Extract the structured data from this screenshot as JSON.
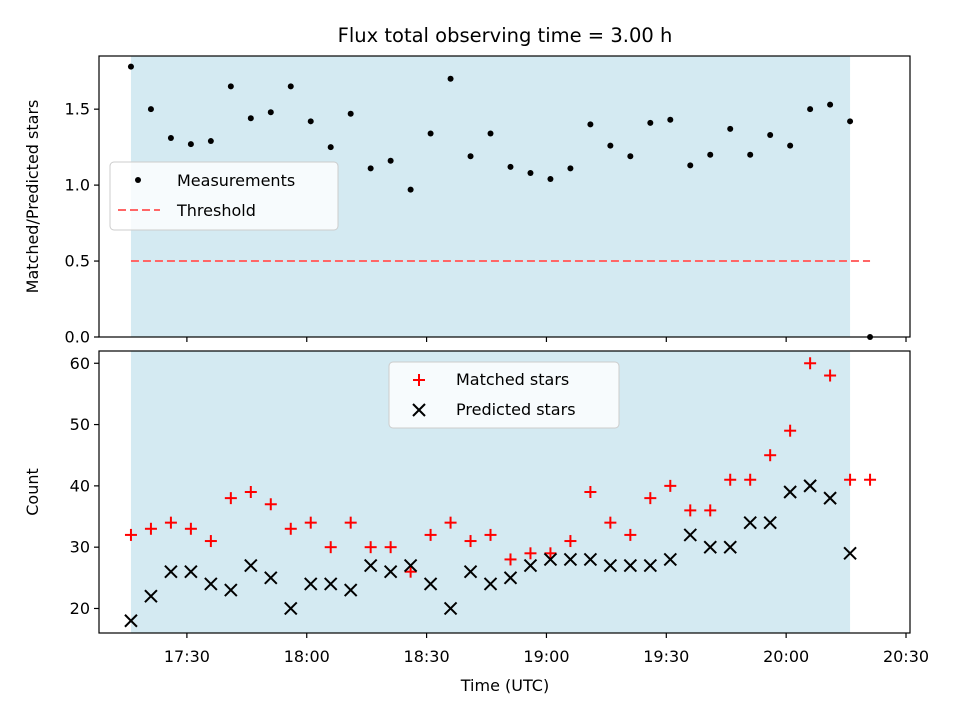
{
  "chart_data": [
    {
      "type": "scatter",
      "title": "Flux total observing time = 3.00 h",
      "ylabel": "Matched/Predicted stars",
      "ylim": [
        0,
        1.85
      ],
      "yticks": [
        0.0,
        0.5,
        1.0,
        1.5
      ],
      "ytick_labels": [
        "0.0",
        "0.5",
        "1.0",
        "1.5"
      ],
      "shaded_region": {
        "from": "17:16",
        "to": "20:16",
        "color": "#add8e6"
      },
      "legend_placement": "center-left",
      "series": [
        {
          "name": "Measurements",
          "marker": "dot",
          "color": "#000000",
          "x": [
            "17:16",
            "17:21",
            "17:26",
            "17:31",
            "17:36",
            "17:41",
            "17:46",
            "17:51",
            "17:56",
            "18:01",
            "18:06",
            "18:11",
            "18:16",
            "18:21",
            "18:26",
            "18:31",
            "18:36",
            "18:41",
            "18:46",
            "18:51",
            "18:56",
            "19:01",
            "19:06",
            "19:11",
            "19:16",
            "19:21",
            "19:26",
            "19:31",
            "19:36",
            "19:41",
            "19:46",
            "19:51",
            "19:56",
            "20:01",
            "20:06",
            "20:11",
            "20:16",
            "20:21"
          ],
          "y": [
            1.78,
            1.5,
            1.31,
            1.27,
            1.29,
            1.65,
            1.44,
            1.48,
            1.65,
            1.42,
            1.25,
            1.47,
            1.11,
            1.16,
            0.97,
            1.34,
            1.7,
            1.19,
            1.34,
            1.12,
            1.08,
            1.04,
            1.11,
            1.4,
            1.26,
            1.19,
            1.41,
            1.43,
            1.13,
            1.2,
            1.37,
            1.2,
            1.33,
            1.26,
            1.5,
            1.53,
            1.42,
            0.0
          ]
        },
        {
          "name": "Threshold",
          "style": "dashed",
          "color": "#ff6666",
          "x": [
            "17:16",
            "20:21"
          ],
          "y": [
            0.5,
            0.5
          ]
        }
      ]
    },
    {
      "type": "scatter",
      "ylabel": "Count",
      "xlabel": "Time (UTC)",
      "ylim": [
        16,
        62
      ],
      "yticks": [
        20,
        30,
        40,
        50,
        60
      ],
      "ytick_labels": [
        "20",
        "30",
        "40",
        "50",
        "60"
      ],
      "xlim": [
        "17:08",
        "20:31"
      ],
      "xticks": [
        "17:30",
        "18:00",
        "18:30",
        "19:00",
        "19:30",
        "20:00",
        "20:30"
      ],
      "shaded_region": {
        "from": "17:16",
        "to": "20:16",
        "color": "#add8e6"
      },
      "legend_placement": "upper-center",
      "series": [
        {
          "name": "Matched stars",
          "marker": "plus",
          "color": "#ff0000",
          "x": [
            "17:16",
            "17:21",
            "17:26",
            "17:31",
            "17:36",
            "17:41",
            "17:46",
            "17:51",
            "17:56",
            "18:01",
            "18:06",
            "18:11",
            "18:16",
            "18:21",
            "18:26",
            "18:31",
            "18:36",
            "18:41",
            "18:46",
            "18:51",
            "18:56",
            "19:01",
            "19:06",
            "19:11",
            "19:16",
            "19:21",
            "19:26",
            "19:31",
            "19:36",
            "19:41",
            "19:46",
            "19:51",
            "19:56",
            "20:01",
            "20:06",
            "20:11",
            "20:16",
            "20:21"
          ],
          "y": [
            32,
            33,
            34,
            33,
            31,
            38,
            39,
            37,
            33,
            34,
            30,
            34,
            30,
            30,
            26,
            32,
            34,
            31,
            32,
            28,
            29,
            29,
            31,
            39,
            34,
            32,
            38,
            40,
            36,
            36,
            41,
            41,
            45,
            49,
            60,
            58,
            41,
            41
          ]
        },
        {
          "name": "Predicted stars",
          "marker": "x",
          "color": "#000000",
          "x": [
            "17:16",
            "17:21",
            "17:26",
            "17:31",
            "17:36",
            "17:41",
            "17:46",
            "17:51",
            "17:56",
            "18:01",
            "18:06",
            "18:11",
            "18:16",
            "18:21",
            "18:26",
            "18:31",
            "18:36",
            "18:41",
            "18:46",
            "18:51",
            "18:56",
            "19:01",
            "19:06",
            "19:11",
            "19:16",
            "19:21",
            "19:26",
            "19:31",
            "19:36",
            "19:41",
            "19:46",
            "19:51",
            "19:56",
            "20:01",
            "20:06",
            "20:11",
            "20:16"
          ],
          "y": [
            18,
            22,
            26,
            26,
            24,
            23,
            27,
            25,
            20,
            24,
            24,
            23,
            27,
            26,
            27,
            24,
            20,
            26,
            24,
            25,
            27,
            28,
            28,
            28,
            27,
            27,
            27,
            28,
            32,
            30,
            30,
            34,
            34,
            39,
            40,
            38,
            29
          ]
        }
      ]
    }
  ]
}
